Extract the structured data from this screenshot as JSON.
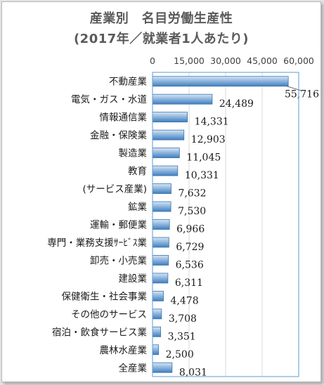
{
  "chart_data": {
    "type": "bar",
    "orientation": "horizontal",
    "title": "産業別　名目労働生産性",
    "subtitle": "(2017年／就業者1人あたり)",
    "categories": [
      "不動産業",
      "電気・ガス・水道",
      "情報通信業",
      "金融・保険業",
      "製造業",
      "教育",
      "(サービス産業)",
      "鉱業",
      "運輸・郵便業",
      "専門・業務支援ｻｰﾋﾞｽ業",
      "卸売・小売業",
      "建設業",
      "保健衛生・社会事業",
      "その他のサービス",
      "宿泊・飲食サービス業",
      "農林水産業",
      "全産業"
    ],
    "values": [
      55716,
      24489,
      14331,
      12903,
      11045,
      10331,
      7632,
      7530,
      6966,
      6729,
      6536,
      6311,
      4478,
      3708,
      3351,
      2500,
      8031
    ],
    "data_labels": [
      "55,716",
      "24,489",
      "14,331",
      "12,903",
      "11,045",
      "10,331",
      "7,632",
      "7,530",
      "6,966",
      "6,729",
      "6,536",
      "6,311",
      "4,478",
      "3,708",
      "3,351",
      "2,500",
      "8,031"
    ],
    "xlim": [
      0,
      60000
    ],
    "xticks": [
      0,
      15000,
      30000,
      45000,
      60000
    ],
    "xtick_labels": [
      "0",
      "15,000",
      "30,000",
      "45,000",
      "60,000"
    ],
    "axis_position": "top",
    "grid": true,
    "colors": {
      "bar_top": "#d6e6f6",
      "bar_bottom": "#3f7fc0",
      "bar_stroke": "#3a73ad",
      "plot_border": "#5b9bd5"
    }
  }
}
